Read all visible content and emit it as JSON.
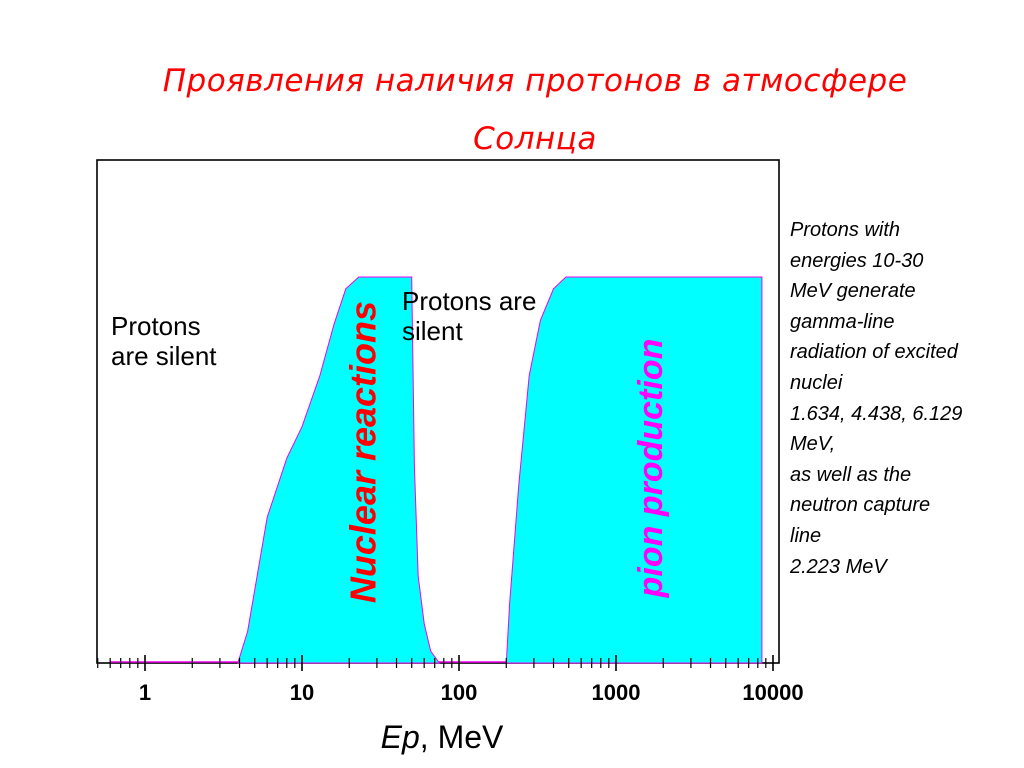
{
  "slide": {
    "title_line1": "Проявления наличия протонов в атмосфере",
    "title_line2": "Солнца",
    "side_note": "Protons with\nenergies 10-30\nMeV generate\ngamma-line\nradiation of excited\nnuclei\n1.634, 4.438, 6.129\nMeV,\nas well as the\nneutron capture\nline\n2.223 MeV"
  },
  "chart_data": {
    "type": "area",
    "xscale": "log",
    "xlim": [
      0.6,
      9000
    ],
    "ylim": [
      0,
      1
    ],
    "xticks": [
      1,
      10,
      100,
      1000,
      10000
    ],
    "xtick_labels": [
      "1",
      "10",
      "100",
      "1000",
      "10000"
    ],
    "xlabel_italic": "Ep",
    "xlabel_rest": ", MeV",
    "fill_color": "#00ffff",
    "edge_color": "#ee00ee",
    "regions": [
      {
        "label": "Nuclear reactions",
        "label_color": "#ff0000",
        "points": [
          [
            3.9,
            0
          ],
          [
            4.5,
            0.08
          ],
          [
            6,
            0.37
          ],
          [
            8,
            0.52
          ],
          [
            10,
            0.6
          ],
          [
            13,
            0.73
          ],
          [
            16,
            0.86
          ],
          [
            19,
            0.95
          ],
          [
            23,
            0.98
          ],
          [
            50,
            0.98
          ],
          [
            52,
            0.5
          ],
          [
            55,
            0.22
          ],
          [
            60,
            0.1
          ],
          [
            66,
            0.03
          ],
          [
            75,
            0
          ]
        ]
      },
      {
        "label": "pion production",
        "label_color": "#ff00ff",
        "points": [
          [
            200,
            0
          ],
          [
            210,
            0.15
          ],
          [
            240,
            0.45
          ],
          [
            280,
            0.73
          ],
          [
            330,
            0.87
          ],
          [
            400,
            0.95
          ],
          [
            480,
            0.98
          ],
          [
            8500,
            0.98
          ],
          [
            8500,
            0
          ]
        ]
      }
    ],
    "annotations": [
      {
        "text": "Protons\nare silent"
      },
      {
        "text": "Protons are\nsilent"
      }
    ]
  }
}
